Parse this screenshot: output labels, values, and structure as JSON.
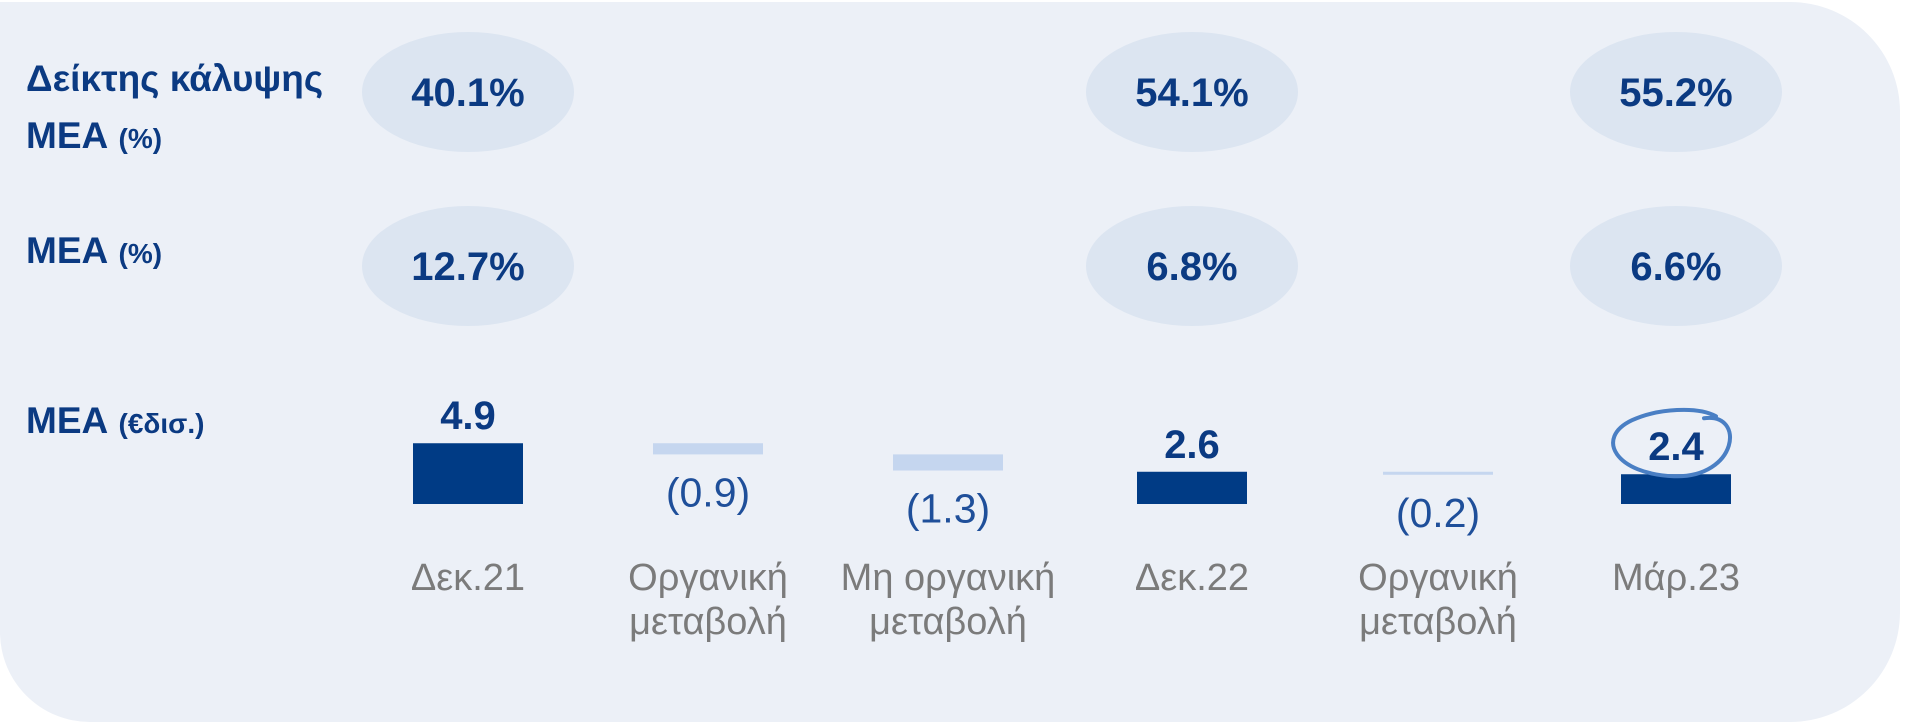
{
  "row_labels": {
    "coverage": {
      "line1": "Δείκτης κάλυψης",
      "line2": "ΜΕΑ",
      "unit": "(%)"
    },
    "npe_ratio": {
      "main": "ΜΕΑ",
      "unit": "(%)"
    },
    "npe_amount": {
      "main": "ΜΕΑ",
      "unit": "(€δισ.)"
    }
  },
  "colors": {
    "positive_bar": "#003b85",
    "negative_bar": "#c5d6ef",
    "ellipse": "#dce5f1",
    "highlight_circle": "#4a7fc4"
  },
  "chart_data": {
    "type": "bar",
    "categories": [
      [
        "Δεκ.21"
      ],
      [
        "Οργανική",
        "μεταβολή"
      ],
      [
        "Μη οργανική",
        "μεταβολή"
      ],
      [
        "Δεκ.22"
      ],
      [
        "Οργανική",
        "μεταβολή"
      ],
      [
        "Μάρ.23"
      ]
    ],
    "values": [
      4.9,
      -0.9,
      -1.3,
      2.6,
      -0.2,
      2.4
    ],
    "value_labels": [
      "4.9",
      "(0.9)",
      "(1.3)",
      "2.6",
      "(0.2)",
      "2.4"
    ],
    "kind": [
      "total",
      "change",
      "change",
      "total",
      "change",
      "total"
    ],
    "highlighted_index": 5,
    "coverage_ratio": [
      "40.1%",
      "",
      "",
      "54.1%",
      "",
      "55.2%"
    ],
    "npe_ratio": [
      "12.7%",
      "",
      "",
      "6.8%",
      "",
      "6.6%"
    ]
  }
}
